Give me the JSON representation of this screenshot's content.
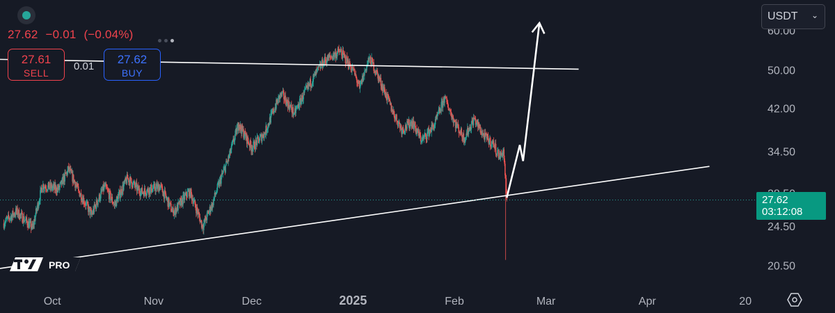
{
  "header": {
    "last_price": "27.62",
    "change": "−0.01",
    "change_pct": "(−0.04%)"
  },
  "trade_panel": {
    "sell_price": "27.61",
    "sell_label": "SELL",
    "spread": "0.01",
    "buy_price": "27.62",
    "buy_label": "BUY"
  },
  "currency_select": {
    "value": "USDT"
  },
  "price_tag": {
    "price": "27.62",
    "countdown": "03:12:08"
  },
  "logo": {
    "text": "PRO"
  },
  "colors": {
    "background": "#161a25",
    "up": "#26a69a",
    "down": "#ef5350",
    "axis_text": "#b2b5be",
    "drawing": "#ffffff",
    "price_tag": "#089981"
  },
  "icons": [
    "status-dot-icon",
    "chevron-down-icon",
    "tradingview-logo-icon",
    "settings-hexagon-icon"
  ],
  "chart_data": {
    "type": "candlestick",
    "y_ticks": [
      "60.00",
      "50.00",
      "42.00",
      "34.50",
      "28.50",
      "24.50",
      "20.50"
    ],
    "x_ticks": [
      {
        "label": "Oct",
        "bold": false
      },
      {
        "label": "Nov",
        "bold": false
      },
      {
        "label": "Dec",
        "bold": false
      },
      {
        "label": "2025",
        "bold": true
      },
      {
        "label": "Feb",
        "bold": false
      },
      {
        "label": "Mar",
        "bold": false
      },
      {
        "label": "Apr",
        "bold": false
      },
      {
        "label": "20",
        "bold": false
      }
    ],
    "x_tick_dates": [
      "2024-10-01",
      "2024-11-01",
      "2024-12-01",
      "2025-01-01",
      "2025-02-01",
      "2025-03-01",
      "2025-04-01",
      "2025-05-01"
    ],
    "y_scale": "log",
    "date_range": [
      "2024-09-15",
      "2025-05-05"
    ],
    "price_range": [
      19.5,
      63.0
    ],
    "last_price": 27.62,
    "price_path_anchors": [
      [
        "2024-09-16",
        24.8
      ],
      [
        "2024-09-20",
        26.2
      ],
      [
        "2024-09-25",
        24.3
      ],
      [
        "2024-09-28",
        29.5
      ],
      [
        "2024-10-03",
        29.0
      ],
      [
        "2024-10-06",
        31.8
      ],
      [
        "2024-10-09",
        28.8
      ],
      [
        "2024-10-13",
        25.8
      ],
      [
        "2024-10-17",
        29.4
      ],
      [
        "2024-10-20",
        27.0
      ],
      [
        "2024-10-24",
        30.5
      ],
      [
        "2024-10-28",
        28.6
      ],
      [
        "2024-11-03",
        29.4
      ],
      [
        "2024-11-07",
        26.0
      ],
      [
        "2024-11-12",
        28.8
      ],
      [
        "2024-11-16",
        24.4
      ],
      [
        "2024-11-19",
        27.2
      ],
      [
        "2024-11-24",
        33.5
      ],
      [
        "2024-11-27",
        39.0
      ],
      [
        "2024-12-01",
        35.0
      ],
      [
        "2024-12-05",
        37.5
      ],
      [
        "2024-12-10",
        45.0
      ],
      [
        "2024-12-14",
        41.0
      ],
      [
        "2024-12-18",
        46.0
      ],
      [
        "2024-12-23",
        52.0
      ],
      [
        "2024-12-28",
        54.5
      ],
      [
        "2025-01-01",
        50.0
      ],
      [
        "2025-01-03",
        46.0
      ],
      [
        "2025-01-06",
        53.0
      ],
      [
        "2025-01-09",
        48.0
      ],
      [
        "2025-01-13",
        41.5
      ],
      [
        "2025-01-16",
        38.0
      ],
      [
        "2025-01-19",
        39.5
      ],
      [
        "2025-01-22",
        36.2
      ],
      [
        "2025-01-26",
        39.0
      ],
      [
        "2025-01-29",
        44.0
      ],
      [
        "2025-02-01",
        39.5
      ],
      [
        "2025-02-04",
        36.5
      ],
      [
        "2025-02-07",
        40.0
      ],
      [
        "2025-02-10",
        37.0
      ],
      [
        "2025-02-13",
        35.5
      ],
      [
        "2025-02-15",
        33.5
      ],
      [
        "2025-02-16",
        34.8
      ],
      [
        "2025-02-17",
        27.62
      ]
    ],
    "drawings": [
      {
        "type": "trendline",
        "points": [
          [
            "2024-09-15",
            52.5
          ],
          [
            "2025-03-11",
            50.2
          ]
        ]
      },
      {
        "type": "trendline",
        "points": [
          [
            "2024-09-15",
            20.2
          ],
          [
            "2025-04-20",
            32.2
          ]
        ]
      },
      {
        "type": "arrow",
        "points": [
          [
            "2025-02-17",
            27.9
          ],
          [
            "2025-02-21",
            35.5
          ],
          [
            "2025-02-22",
            33.0
          ],
          [
            "2025-02-27",
            62.0
          ]
        ]
      }
    ]
  }
}
